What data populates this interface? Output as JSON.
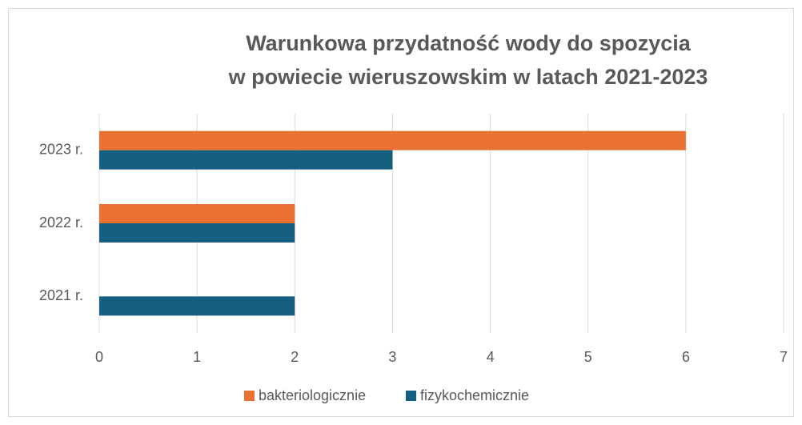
{
  "chart_data": {
    "type": "bar",
    "orientation": "horizontal",
    "title": [
      "Warunkowa przydatność wody do spozycia",
      "w powiecie wieruszowskim w latach 2021-2023"
    ],
    "categories": [
      "2021 r.",
      "2022 r.",
      "2023 r."
    ],
    "series": [
      {
        "name": "bakteriologicznie",
        "color": "#e97132",
        "values": [
          0,
          2,
          6
        ]
      },
      {
        "name": "fizykochemicznie",
        "color": "#156082",
        "values": [
          2,
          2,
          3
        ]
      }
    ],
    "xlim": [
      0,
      7
    ],
    "xticks": [
      0,
      1,
      2,
      3,
      4,
      5,
      6,
      7
    ],
    "grid": true,
    "legend": "bottom"
  }
}
